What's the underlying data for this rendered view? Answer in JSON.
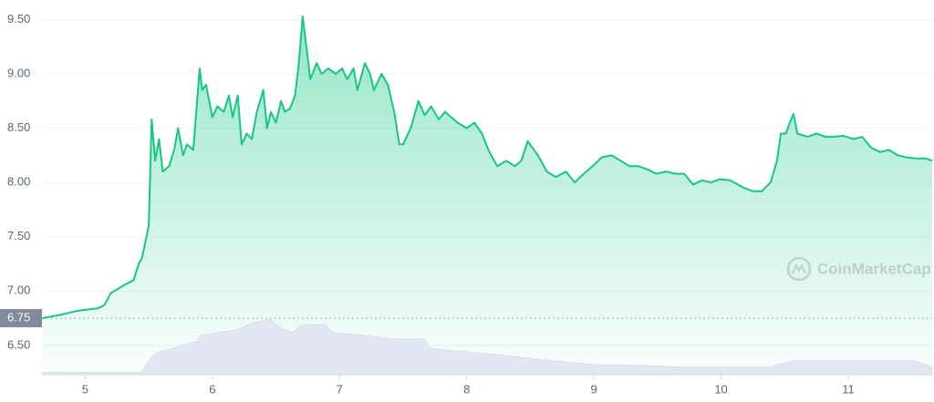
{
  "chart_data": {
    "type": "line",
    "watermark": "CoinMarketCap",
    "xlim": [
      4.66,
      11.66
    ],
    "xticks": [
      5,
      6,
      7,
      8,
      9,
      10,
      11
    ],
    "ylim": [
      6.23,
      9.68
    ],
    "yticks": [
      {
        "value": 6.5,
        "label": "6.50"
      },
      {
        "value": 7,
        "label": "7.00"
      },
      {
        "value": 7.5,
        "label": "7.50"
      },
      {
        "value": 8,
        "label": "8.00"
      },
      {
        "value": 8.5,
        "label": "8.50"
      },
      {
        "value": 9,
        "label": "9.00"
      },
      {
        "value": 9.5,
        "label": "9.50"
      }
    ],
    "y2lim": [
      0,
      600
    ],
    "grid": true,
    "price_marker": {
      "value": 6.75,
      "label": "6.75"
    },
    "series": [
      {
        "name": "Price",
        "color": "#16c784",
        "x": [
          4.66,
          4.8,
          4.95,
          5.1,
          5.15,
          5.2,
          5.3,
          5.38,
          5.42,
          5.445,
          5.5,
          5.523,
          5.55,
          5.58,
          5.61,
          5.66,
          5.7,
          5.73,
          5.77,
          5.8,
          5.85,
          5.9,
          5.92,
          5.95,
          6.0,
          6.04,
          6.09,
          6.13,
          6.16,
          6.2,
          6.23,
          6.27,
          6.31,
          6.35,
          6.4,
          6.43,
          6.46,
          6.5,
          6.54,
          6.57,
          6.61,
          6.65,
          6.68,
          6.71,
          6.75,
          6.77,
          6.82,
          6.86,
          6.91,
          6.97,
          7.02,
          7.06,
          7.11,
          7.14,
          7.2,
          7.24,
          7.27,
          7.33,
          7.38,
          7.43,
          7.47,
          7.5,
          7.56,
          7.62,
          7.67,
          7.72,
          7.78,
          7.83,
          7.88,
          7.93,
          8.0,
          8.06,
          8.12,
          8.17,
          8.24,
          8.31,
          8.38,
          8.43,
          8.48,
          8.56,
          8.63,
          8.7,
          8.78,
          8.85,
          8.92,
          8.99,
          9.06,
          9.14,
          9.21,
          9.28,
          9.35,
          9.42,
          9.49,
          9.57,
          9.64,
          9.71,
          9.78,
          9.85,
          9.92,
          9.99,
          10.07,
          10.18,
          10.25,
          10.32,
          10.39,
          10.44,
          10.47,
          10.51,
          10.54,
          10.57,
          10.6,
          10.68,
          10.75,
          10.82,
          10.89,
          10.96,
          11.04,
          11.11,
          11.18,
          11.25,
          11.32,
          11.39,
          11.46,
          11.54,
          11.61,
          11.66
        ],
        "values": [
          6.75,
          6.78,
          6.82,
          6.84,
          6.87,
          6.98,
          7.05,
          7.1,
          7.25,
          7.3,
          7.6,
          8.58,
          8.2,
          8.4,
          8.1,
          8.15,
          8.3,
          8.5,
          8.25,
          8.35,
          8.3,
          9.05,
          8.85,
          8.9,
          8.6,
          8.7,
          8.65,
          8.8,
          8.6,
          8.8,
          8.35,
          8.45,
          8.4,
          8.65,
          8.85,
          8.5,
          8.65,
          8.55,
          8.75,
          8.65,
          8.68,
          8.8,
          9.1,
          9.53,
          9.15,
          8.95,
          9.1,
          9.0,
          9.05,
          9.0,
          9.05,
          8.95,
          9.05,
          8.85,
          9.1,
          9.0,
          8.85,
          9.0,
          8.9,
          8.65,
          8.35,
          8.35,
          8.5,
          8.75,
          8.62,
          8.7,
          8.58,
          8.65,
          8.6,
          8.55,
          8.5,
          8.55,
          8.45,
          8.3,
          8.15,
          8.2,
          8.15,
          8.2,
          8.38,
          8.25,
          8.1,
          8.05,
          8.1,
          8.0,
          8.08,
          8.15,
          8.23,
          8.25,
          8.2,
          8.15,
          8.15,
          8.12,
          8.08,
          8.1,
          8.08,
          8.08,
          7.98,
          8.02,
          8.0,
          8.03,
          8.02,
          7.95,
          7.92,
          7.92,
          8.0,
          8.2,
          8.45,
          8.45,
          8.55,
          8.63,
          8.45,
          8.42,
          8.45,
          8.42,
          8.42,
          8.43,
          8.4,
          8.42,
          8.32,
          8.28,
          8.3,
          8.25,
          8.23,
          8.22,
          8.22,
          8.2
        ]
      },
      {
        "name": "Volume",
        "color": "#e3e6f3",
        "axis": "y2",
        "x": [
          4.66,
          5.445,
          5.48,
          5.52,
          5.59,
          5.7,
          5.77,
          5.88,
          5.91,
          6.2,
          6.31,
          6.45,
          6.52,
          6.63,
          6.7,
          6.88,
          6.95,
          7.2,
          7.42,
          7.67,
          7.71,
          7.92,
          8.28,
          8.64,
          9.0,
          9.35,
          9.71,
          10.07,
          10.39,
          10.49,
          10.6,
          11.5,
          11.66
        ],
        "values": [
          4,
          4,
          16,
          28,
          38,
          42,
          48,
          53,
          63,
          72,
          82,
          89,
          77,
          67,
          79,
          80,
          67,
          63,
          57,
          57,
          42,
          38,
          31,
          23,
          16,
          15,
          12,
          12,
          12,
          19,
          23,
          23,
          13
        ]
      }
    ]
  }
}
